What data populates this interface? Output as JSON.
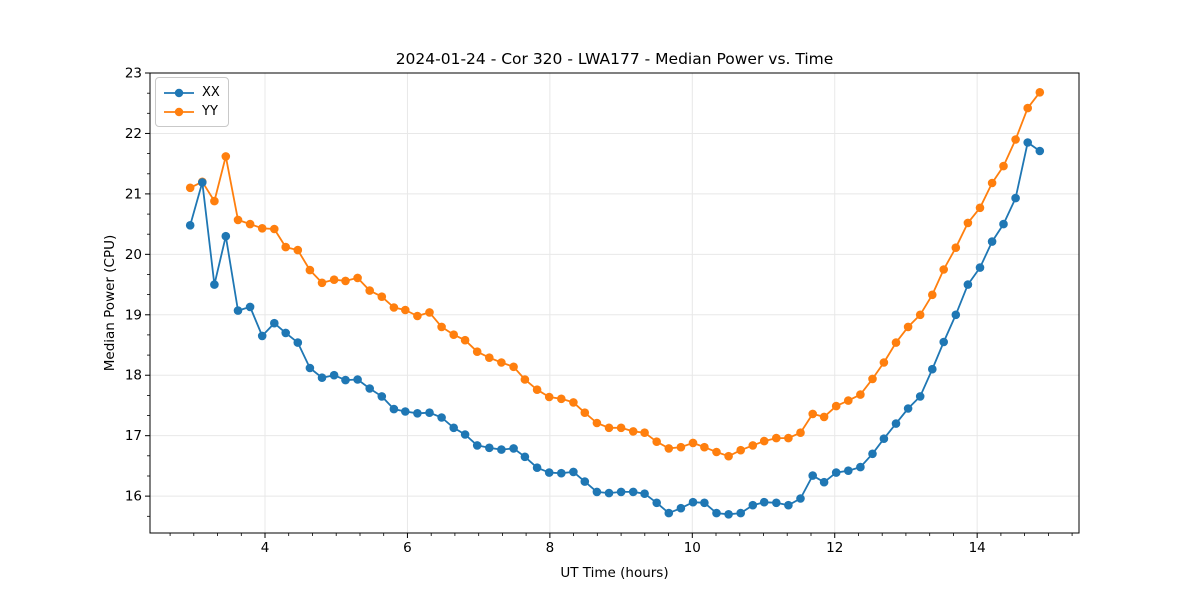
{
  "chart_data": {
    "type": "line",
    "title": "2024-01-24 - Cor 320 - LWA177 - Median Power vs. Time",
    "xlabel": "UT Time (hours)",
    "ylabel": "Median Power (CPU)",
    "xlim": [
      2.385,
      15.43
    ],
    "ylim": [
      15.39,
      23.0
    ],
    "xticks": [
      4,
      6,
      8,
      10,
      12,
      14
    ],
    "yticks": [
      16,
      17,
      18,
      19,
      20,
      21,
      22,
      23
    ],
    "minor_tick_step": 0.33333,
    "grid": "major",
    "grid_color": "#e8e8e8",
    "legend_position": "upper left",
    "x": [
      2.95,
      3.12,
      3.29,
      3.45,
      3.62,
      3.79,
      3.96,
      4.13,
      4.29,
      4.46,
      4.63,
      4.8,
      4.97,
      5.13,
      5.3,
      5.47,
      5.64,
      5.81,
      5.97,
      6.14,
      6.31,
      6.48,
      6.65,
      6.81,
      6.98,
      7.15,
      7.32,
      7.49,
      7.65,
      7.82,
      7.99,
      8.16,
      8.33,
      8.49,
      8.66,
      8.83,
      9.0,
      9.17,
      9.33,
      9.5,
      9.67,
      9.84,
      10.01,
      10.17,
      10.34,
      10.51,
      10.68,
      10.85,
      11.01,
      11.18,
      11.35,
      11.52,
      11.69,
      11.85,
      12.02,
      12.19,
      12.36,
      12.53,
      12.69,
      12.86,
      13.03,
      13.2,
      13.37,
      13.53,
      13.7,
      13.87,
      14.04,
      14.21,
      14.37,
      14.54,
      14.71,
      14.88
    ],
    "series": [
      {
        "name": "XX",
        "color": "#1f77b4",
        "y": [
          20.48,
          21.19,
          19.5,
          20.3,
          19.07,
          19.13,
          18.65,
          18.86,
          18.7,
          18.54,
          18.12,
          17.96,
          18.0,
          17.92,
          17.93,
          17.78,
          17.65,
          17.44,
          17.4,
          17.37,
          17.38,
          17.3,
          17.13,
          17.02,
          16.84,
          16.8,
          16.77,
          16.79,
          16.65,
          16.47,
          16.39,
          16.38,
          16.4,
          16.24,
          16.07,
          16.05,
          16.07,
          16.07,
          16.04,
          15.89,
          15.72,
          15.8,
          15.9,
          15.89,
          15.72,
          15.7,
          15.72,
          15.85,
          15.9,
          15.89,
          15.85,
          15.96,
          16.34,
          16.23,
          16.39,
          16.42,
          16.48,
          16.7,
          16.95,
          17.2,
          17.45,
          17.65,
          18.1,
          18.55,
          19.0,
          19.5,
          19.78,
          20.21,
          20.5,
          20.93,
          21.85,
          21.71
        ]
      },
      {
        "name": "YY",
        "color": "#ff7f0e",
        "y": [
          21.1,
          21.2,
          20.88,
          21.62,
          20.57,
          20.5,
          20.43,
          20.42,
          20.12,
          20.07,
          19.74,
          19.53,
          19.58,
          19.56,
          19.61,
          19.4,
          19.3,
          19.12,
          19.08,
          18.98,
          19.04,
          18.8,
          18.67,
          18.58,
          18.39,
          18.29,
          18.21,
          18.14,
          17.93,
          17.76,
          17.64,
          17.61,
          17.55,
          17.38,
          17.21,
          17.13,
          17.13,
          17.07,
          17.05,
          16.9,
          16.79,
          16.81,
          16.88,
          16.81,
          16.73,
          16.66,
          16.76,
          16.84,
          16.91,
          16.96,
          16.96,
          17.05,
          17.36,
          17.31,
          17.49,
          17.58,
          17.68,
          17.94,
          18.21,
          18.54,
          18.8,
          19.0,
          19.33,
          19.75,
          20.11,
          20.52,
          20.77,
          21.18,
          21.46,
          21.9,
          22.42,
          22.68
        ]
      }
    ]
  }
}
